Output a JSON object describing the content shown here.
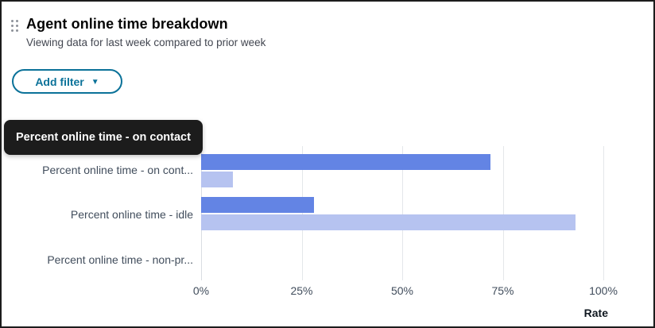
{
  "header": {
    "title": "Agent online time breakdown",
    "subtitle": "Viewing data for last week compared to prior week"
  },
  "filter": {
    "button_label": "Add filter",
    "caret": "▼"
  },
  "tooltip": {
    "text": "Percent online time - on contact"
  },
  "colors": {
    "accent": "#0b7299",
    "bar_current": "#6384e4",
    "bar_prior": "#b6c3f0",
    "tooltip_bg": "#1c1c1c",
    "gridline": "#e4e7ea",
    "label_text": "#414d5c"
  },
  "chart_data": {
    "type": "bar",
    "orientation": "horizontal",
    "title": "Agent online time breakdown",
    "categories": [
      "Percent online time - on contact",
      "Percent online time - idle",
      "Percent online time - non-productive"
    ],
    "category_display_labels": [
      "Percent online time - on cont...",
      "Percent online time - idle",
      "Percent online time - non-pr..."
    ],
    "series": [
      {
        "name": "last week",
        "color": "#6384e4",
        "values": [
          72,
          28,
          0
        ]
      },
      {
        "name": "prior week",
        "color": "#b6c3f0",
        "values": [
          8,
          93,
          0
        ]
      }
    ],
    "xlabel": "Rate",
    "x_ticks": [
      "0%",
      "25%",
      "50%",
      "75%",
      "100%"
    ],
    "x_tick_values": [
      0,
      25,
      50,
      75,
      100
    ],
    "xlim": [
      0,
      100
    ],
    "grid": true,
    "legend": "none"
  }
}
